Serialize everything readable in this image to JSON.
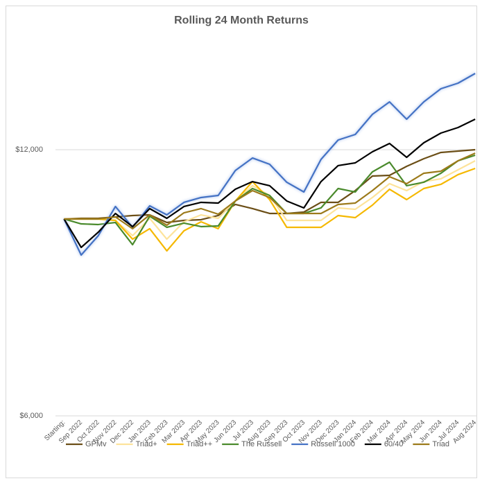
{
  "chart_data": {
    "type": "line",
    "title": "Rolling 24 Month Returns",
    "categories": [
      "Starting:",
      "Sep 2022",
      "Oct 2022",
      "Nov 2022",
      "Dec 2022",
      "Jan 2023",
      "Feb 2023",
      "Mar 2023",
      "Apr 2023",
      "May 2023",
      "Jun 2023",
      "Jul 2023",
      "Aug 2023",
      "Sep 2023",
      "Oct 2023",
      "Nov 2023",
      "Dec 2023",
      "Jan 2024",
      "Feb 2024",
      "Mar 2024",
      "Apr 2024",
      "May 2024",
      "Jun 2024",
      "Jul 2024",
      "Aug 2024"
    ],
    "series": [
      {
        "name": "GPMv",
        "color": "#6b4e16",
        "values": [
          10438,
          10453,
          10453,
          10484,
          10516,
          10531,
          10359,
          10406,
          10422,
          10516,
          10766,
          10672,
          10563,
          10563,
          10594,
          10813,
          10813,
          11078,
          11406,
          11422,
          11625,
          11797,
          11938,
          11969,
          12000
        ]
      },
      {
        "name": "Triad+",
        "color": "#fde39a",
        "values": [
          10438,
          10438,
          10438,
          10406,
          10063,
          10453,
          9984,
          10375,
          10531,
          10453,
          10844,
          11188,
          10969,
          10406,
          10406,
          10406,
          10688,
          10656,
          10922,
          11234,
          11078,
          11281,
          11344,
          11547,
          11750
        ]
      },
      {
        "name": "Triad++",
        "color": "#f5b800",
        "values": [
          10438,
          10438,
          10438,
          10406,
          9984,
          10219,
          9719,
          10172,
          10375,
          10219,
          10844,
          11281,
          10875,
          10250,
          10250,
          10250,
          10516,
          10469,
          10750,
          11109,
          10875,
          11125,
          11219,
          11438,
          11578
        ]
      },
      {
        "name": "The Russell",
        "color": "#4a8a2c",
        "values": [
          10438,
          10328,
          10313,
          10359,
          9859,
          10500,
          10250,
          10344,
          10266,
          10281,
          10844,
          11125,
          10969,
          10563,
          10563,
          10688,
          11125,
          11047,
          11500,
          11719,
          11188,
          11266,
          11469,
          11750,
          11875
        ]
      },
      {
        "name": "Russell 1000",
        "color": "#4472c4",
        "values": [
          10438,
          9625,
          10063,
          10719,
          10250,
          10734,
          10531,
          10813,
          10922,
          10969,
          11531,
          11813,
          11672,
          11266,
          11047,
          11781,
          12219,
          12344,
          12797,
          13078,
          12688,
          13078,
          13375,
          13500,
          13719
        ]
      },
      {
        "name": "60/40",
        "color": "#000000",
        "values": [
          10438,
          9797,
          10141,
          10563,
          10266,
          10672,
          10453,
          10719,
          10813,
          10797,
          11109,
          11281,
          11188,
          10844,
          10688,
          11281,
          11641,
          11703,
          11953,
          12141,
          11828,
          12156,
          12375,
          12500,
          12688
        ]
      },
      {
        "name": "Triad",
        "color": "#9c7a1a",
        "values": [
          10438,
          10438,
          10438,
          10484,
          10219,
          10531,
          10297,
          10578,
          10672,
          10547,
          10844,
          11078,
          10922,
          10563,
          10563,
          10563,
          10766,
          10797,
          11078,
          11391,
          11234,
          11469,
          11516,
          11750,
          11922
        ]
      }
    ],
    "ylim": [
      6000,
      14000
    ],
    "yticks": [
      {
        "value": 6000,
        "label": "$6,000"
      },
      {
        "value": 12000,
        "label": "$12,000"
      }
    ],
    "grid": true,
    "legend": "bottom"
  }
}
